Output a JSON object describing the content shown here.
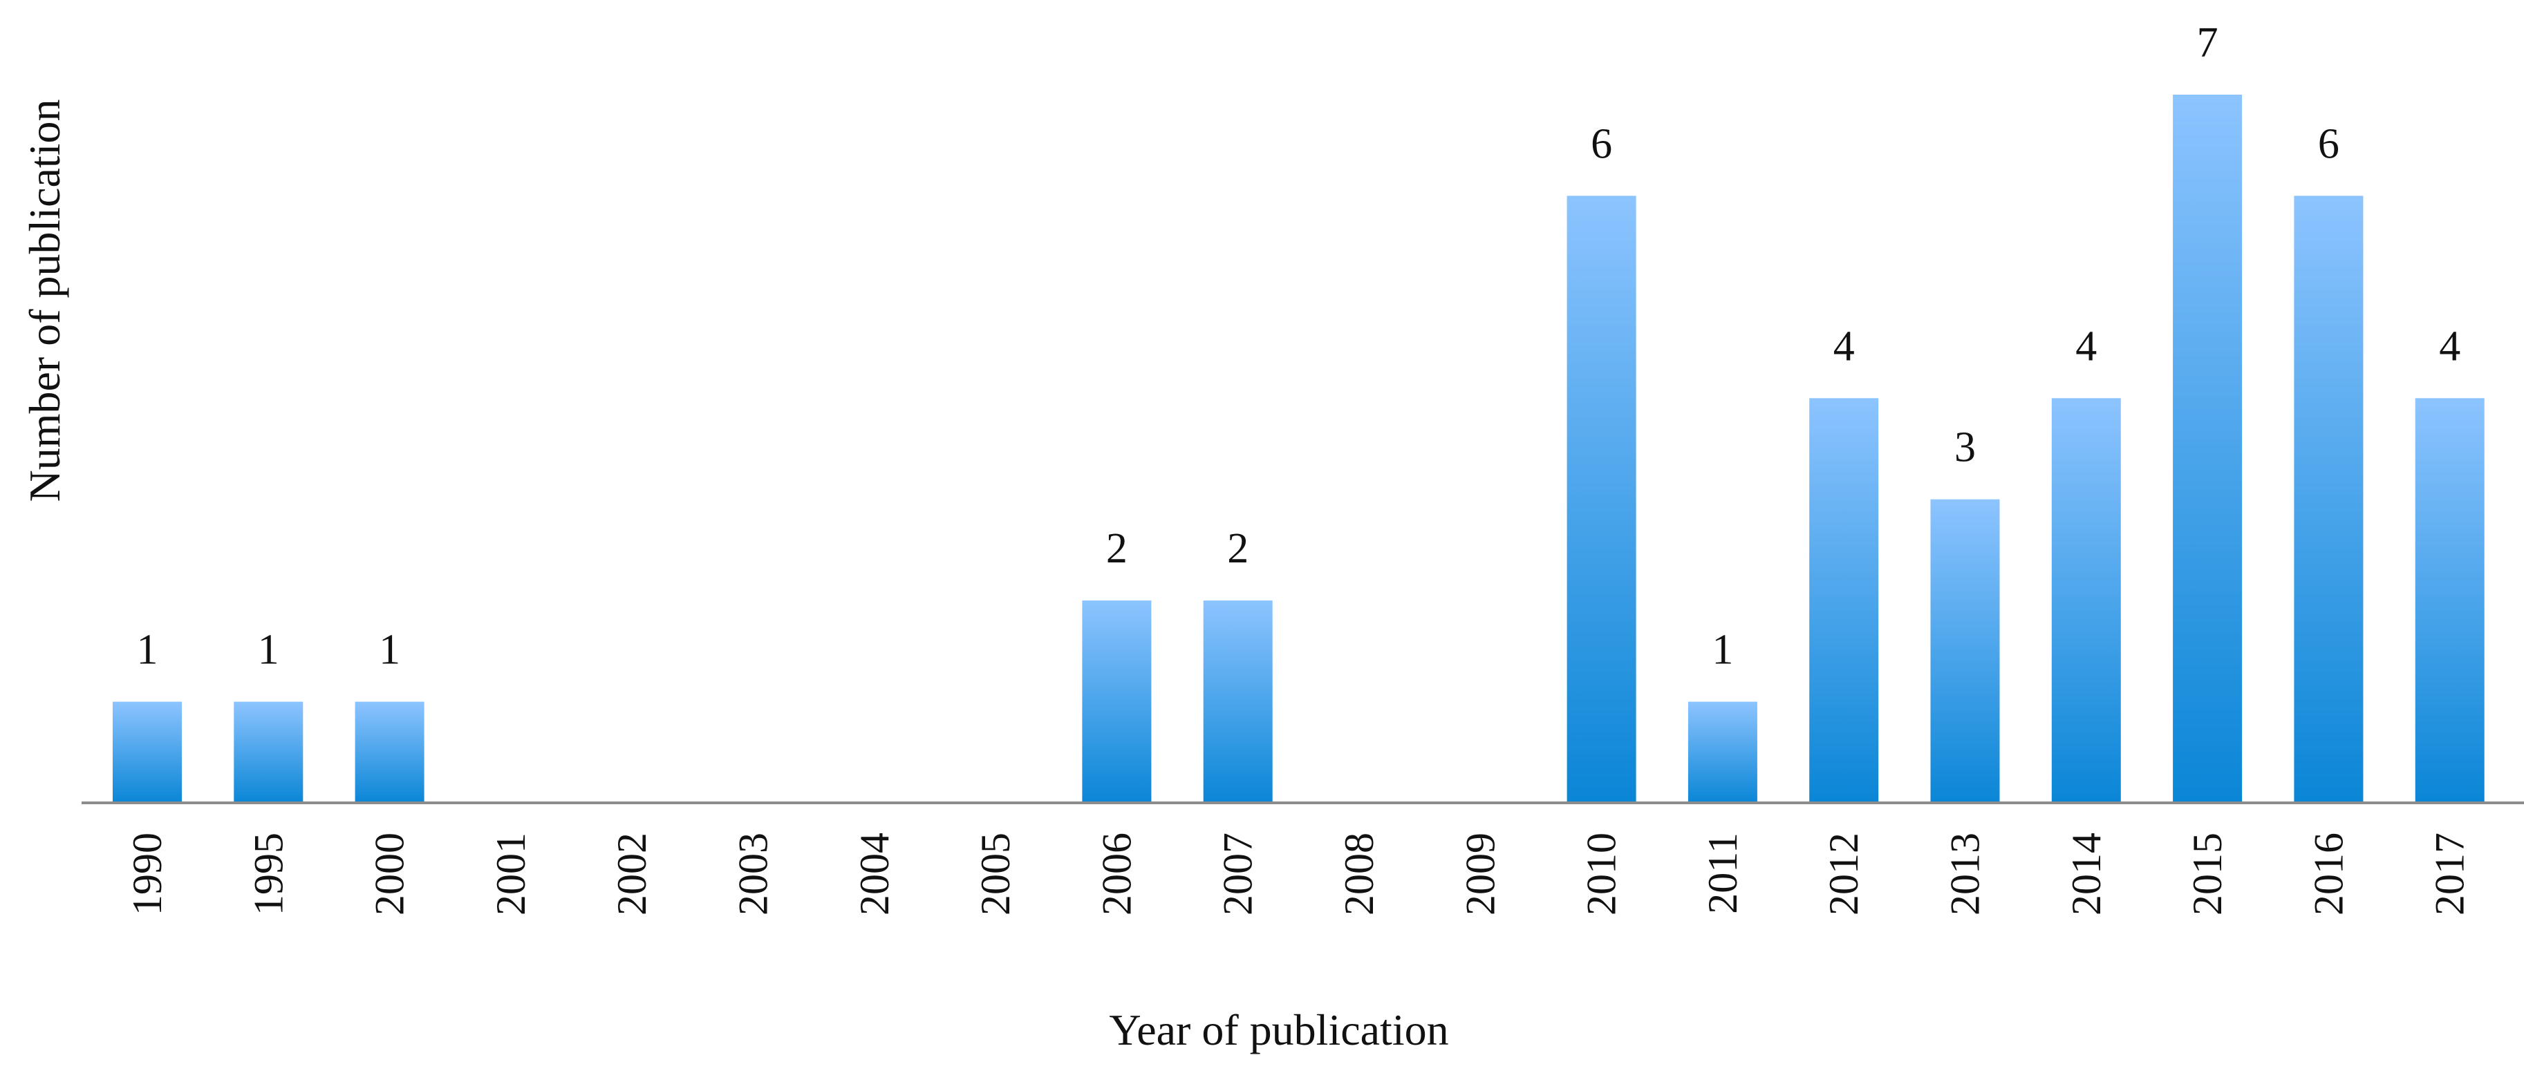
{
  "chart_data": {
    "type": "bar",
    "title": "",
    "xlabel": "Year of publication",
    "ylabel": "Number of publication",
    "categories": [
      "1990",
      "1995",
      "2000",
      "2001",
      "2002",
      "2003",
      "2004",
      "2005",
      "2006",
      "2007",
      "2008",
      "2009",
      "2010",
      "2011",
      "2012",
      "2013",
      "2014",
      "2015",
      "2016",
      "2017"
    ],
    "values": [
      1,
      1,
      1,
      0,
      0,
      0,
      0,
      0,
      2,
      2,
      0,
      0,
      6,
      1,
      4,
      3,
      4,
      7,
      6,
      4
    ],
    "data_labels": [
      "1",
      "1",
      "1",
      "",
      "",
      "",
      "",
      "",
      "2",
      "2",
      "",
      "",
      "6",
      "1",
      "4",
      "3",
      "4",
      "7",
      "6",
      "4"
    ],
    "ylim": [
      0,
      7
    ],
    "grid": false,
    "legend": "none",
    "colors": {
      "bar_top": "#8DC4FF",
      "bar_bottom": "#0A86D6",
      "axis": "#8C8C8C",
      "text": "#111111"
    }
  }
}
